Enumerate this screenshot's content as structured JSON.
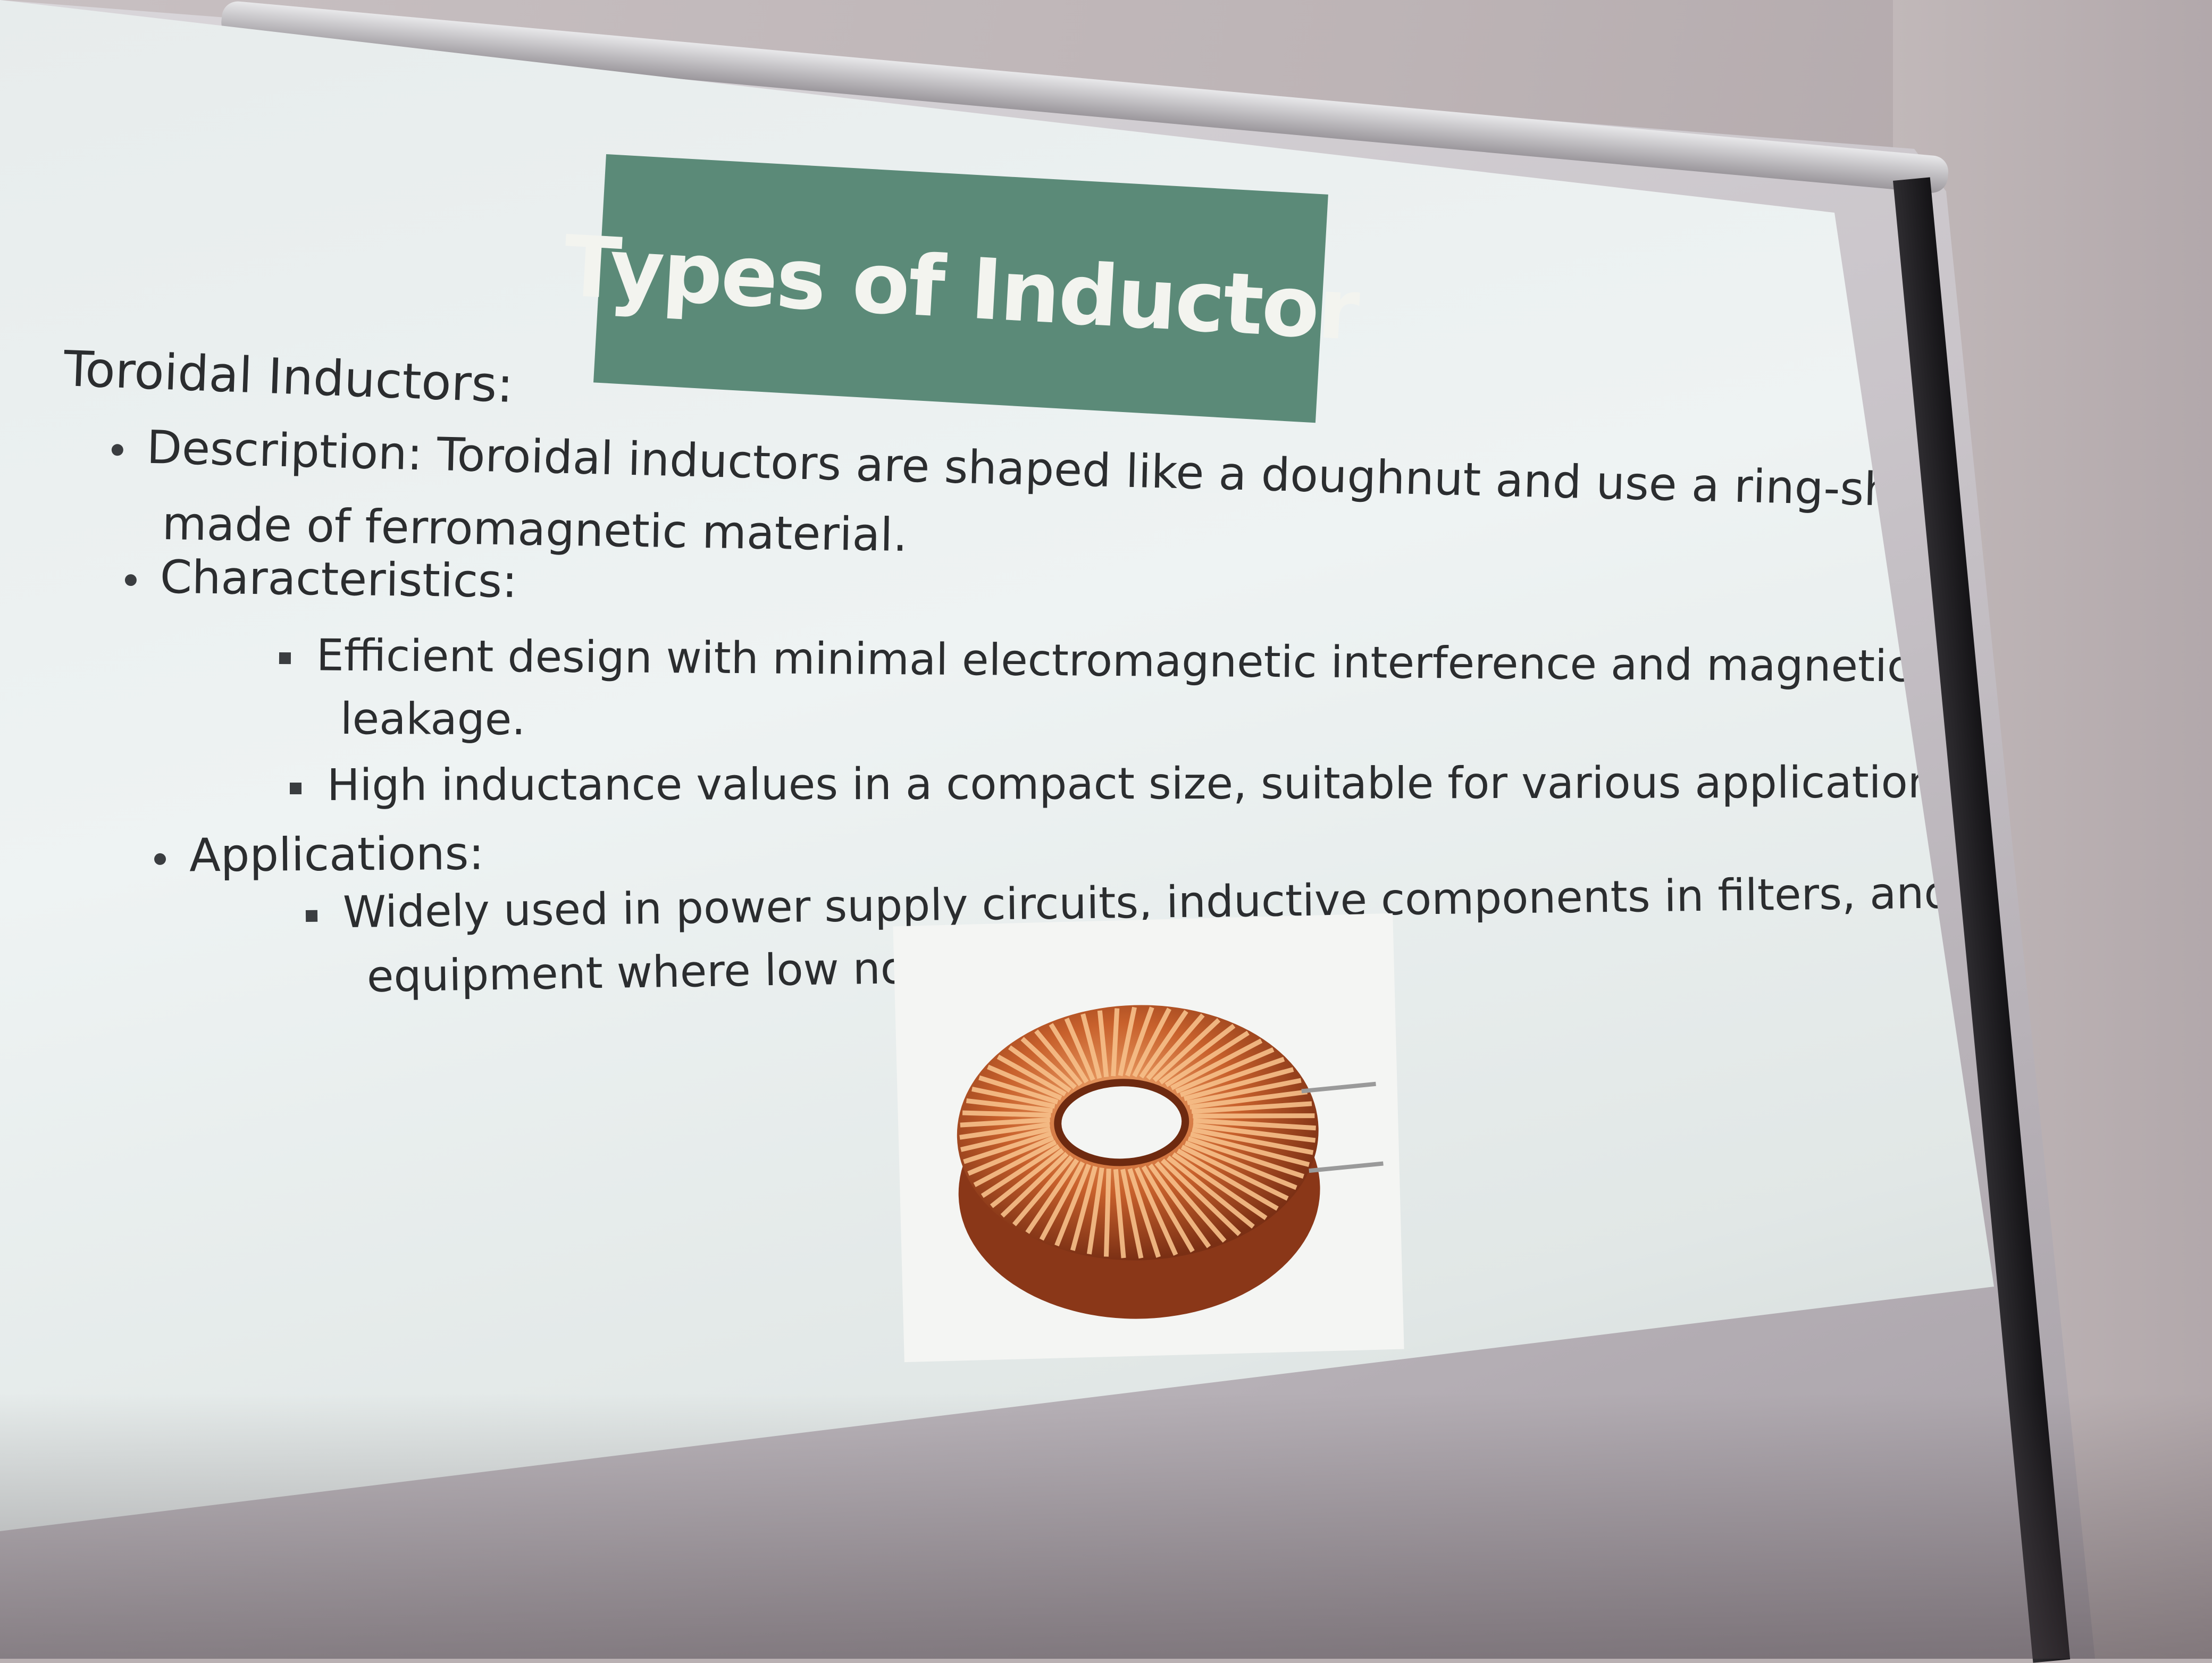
{
  "slide": {
    "title": "Types of Inductor",
    "heading": "Toroidal Inductors:",
    "description_line1": "Description: Toroidal inductors are shaped like a doughnut and use a ring-shaped core",
    "description_line2": "made of ferromagnetic material.",
    "characteristics_label": "Characteristics:",
    "characteristic1_line1": "Efficient design with minimal electromagnetic interference and magnetic flux",
    "characteristic1_line2": "leakage.",
    "characteristic2": "High inductance values in a compact size, suitable for various applications.",
    "applications_label": "Applications:",
    "application1_line1": "Widely used in power supply circuits, inductive components in filters, and audio",
    "application1_line2": "equipment where low noise is critical."
  },
  "colors": {
    "title_bg": "#5b8a78",
    "copper": "#c8612c",
    "copper_light": "#f0a76a"
  },
  "icons": [
    "toroidal-inductor-photo"
  ]
}
